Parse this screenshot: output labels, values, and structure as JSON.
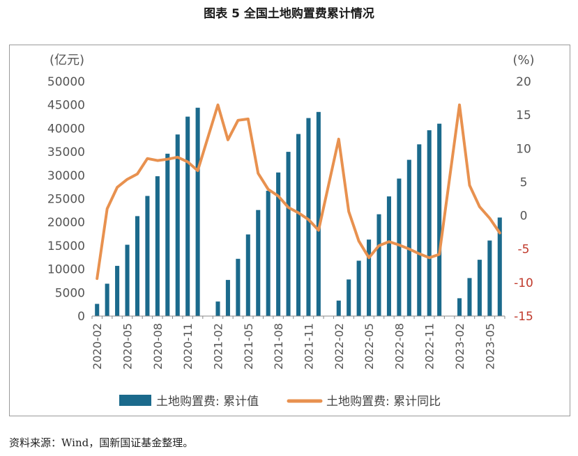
{
  "title": "图表 5 全国土地购置费累计情况",
  "source": "资料来源：Wind，国新国证基金整理。",
  "colors": {
    "bar": "#1b6a8c",
    "line": "#e8914f",
    "axis": "#555555",
    "right_tick": "#c0392b"
  },
  "chart_data": {
    "type": "bar+line",
    "ylabel_left": "(亿元)",
    "ylabel_right": "(%)",
    "ylim_left": [
      0,
      50000
    ],
    "yticks_left": [
      "50000",
      "45000",
      "40000",
      "35000",
      "30000",
      "25000",
      "20000",
      "15000",
      "10000",
      "5000",
      "0"
    ],
    "ylim_right": [
      -15,
      20
    ],
    "yticks_right": [
      "20",
      "15",
      "10",
      "5",
      "0",
      "-5",
      "-10",
      "-15"
    ],
    "xtick_labels": [
      "2020-02",
      "2020-05",
      "2020-08",
      "2020-11",
      "2021-02",
      "2021-05",
      "2021-08",
      "2021-11",
      "2022-02",
      "2022-05",
      "2022-08",
      "2022-11",
      "2023-02",
      "2023-05"
    ],
    "x": [
      "2020-02",
      "2020-03",
      "2020-04",
      "2020-05",
      "2020-06",
      "2020-07",
      "2020-08",
      "2020-09",
      "2020-10",
      "2020-11",
      "2020-12",
      "2021-01",
      "2021-02",
      "2021-03",
      "2021-04",
      "2021-05",
      "2021-06",
      "2021-07",
      "2021-08",
      "2021-09",
      "2021-10",
      "2021-11",
      "2021-12",
      "2022-01",
      "2022-02",
      "2022-03",
      "2022-04",
      "2022-05",
      "2022-06",
      "2022-07",
      "2022-08",
      "2022-09",
      "2022-10",
      "2022-11",
      "2022-12",
      "2023-01",
      "2023-02",
      "2023-03",
      "2023-04",
      "2023-05",
      "2023-06"
    ],
    "series": [
      {
        "name": "土地购置费: 累计值",
        "kind": "bar",
        "axis": "left",
        "values": [
          2600,
          6900,
          10700,
          15200,
          21300,
          25600,
          29800,
          34600,
          38700,
          42500,
          44400,
          null,
          3100,
          7700,
          12200,
          17400,
          22600,
          26700,
          30600,
          35000,
          38800,
          42200,
          43500,
          null,
          3300,
          7800,
          11800,
          16300,
          21700,
          25500,
          29300,
          33300,
          36600,
          39600,
          41000,
          null,
          3800,
          8100,
          12000,
          16100,
          21000
        ]
      },
      {
        "name": "土地购置费: 累计同比",
        "kind": "line",
        "axis": "right",
        "values": [
          -9.4,
          1.0,
          4.2,
          5.4,
          6.2,
          8.5,
          8.2,
          8.4,
          8.7,
          8.0,
          6.7,
          null,
          16.5,
          11.3,
          14.2,
          14.4,
          6.3,
          3.9,
          2.9,
          1.2,
          0.4,
          -0.6,
          -2.2,
          null,
          11.4,
          0.6,
          -3.8,
          -6.3,
          -4.5,
          -3.9,
          -4.4,
          -5.0,
          -5.7,
          -6.3,
          -5.8,
          null,
          16.5,
          4.5,
          1.3,
          -0.4,
          -2.6
        ]
      }
    ],
    "legend_position": "bottom",
    "grid": false
  }
}
